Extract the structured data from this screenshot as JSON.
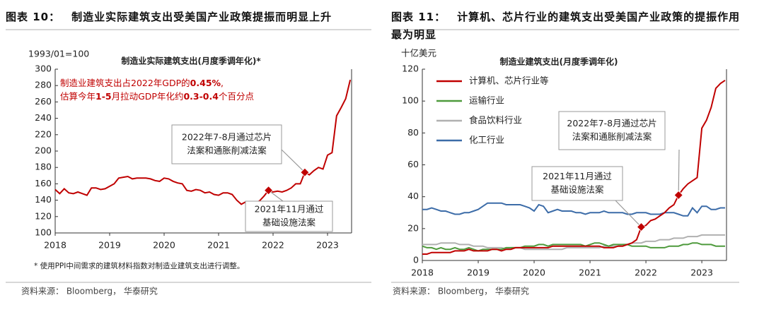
{
  "chart_data": [
    {
      "type": "line",
      "figure_label": "图表 10：",
      "title": "制造业实际建筑支出受美国产业政策提振而明显上升",
      "unit_label": "1993/01=100",
      "subtitle": "制造业实际建筑支出(月度季调年化)*",
      "categories": [
        "2018",
        null,
        null,
        null,
        null,
        null,
        null,
        null,
        null,
        null,
        null,
        null,
        "2019",
        null,
        null,
        null,
        null,
        null,
        null,
        null,
        null,
        null,
        null,
        null,
        "2020",
        null,
        null,
        null,
        null,
        null,
        null,
        null,
        null,
        null,
        null,
        null,
        "2021",
        null,
        null,
        null,
        null,
        null,
        null,
        null,
        null,
        null,
        null,
        null,
        "2022",
        null,
        null,
        null,
        null,
        null,
        null,
        null,
        null,
        null,
        null,
        null,
        "2023",
        null,
        null,
        null,
        null,
        null
      ],
      "series": [
        {
          "name": "制造业实际建筑支出",
          "color": "#c00000",
          "values": [
            153,
            148,
            154,
            149,
            148,
            150,
            148,
            146,
            155,
            155,
            153,
            154,
            157,
            160,
            167,
            168,
            169,
            166,
            167,
            167,
            167,
            166,
            164,
            163,
            167,
            166,
            163,
            161,
            160,
            152,
            151,
            153,
            152,
            149,
            150,
            147,
            146,
            149,
            149,
            147,
            140,
            135,
            138,
            138,
            137,
            139,
            145,
            152,
            150,
            151,
            150,
            152,
            155,
            160,
            160,
            174,
            171,
            176,
            180,
            178,
            195,
            198,
            243,
            253,
            264,
            287
          ]
        }
      ],
      "markers": {
        "color": "#c00000",
        "values": [
          null,
          null,
          null,
          null,
          null,
          null,
          null,
          null,
          null,
          null,
          null,
          null,
          null,
          null,
          null,
          null,
          null,
          null,
          null,
          null,
          null,
          null,
          null,
          null,
          null,
          null,
          null,
          null,
          null,
          null,
          null,
          null,
          null,
          null,
          null,
          null,
          null,
          null,
          null,
          null,
          null,
          null,
          null,
          null,
          null,
          null,
          null,
          152,
          null,
          null,
          null,
          null,
          null,
          null,
          null,
          174,
          null,
          null,
          null,
          null,
          null,
          null,
          null,
          null,
          null,
          null
        ]
      },
      "ylim": [
        100,
        300
      ],
      "yticks": [
        100,
        120,
        140,
        160,
        180,
        200,
        220,
        240,
        260,
        280,
        300
      ],
      "note": {
        "color": "#c00000",
        "lines": [
          [
            "制造业建筑支出占2022年GDP的",
            "0.45%",
            ","
          ],
          [
            "估算今年",
            "1-5",
            "月拉动GDP年化约",
            "0.3-0.4",
            "个百分点"
          ]
        ]
      },
      "annotations": [
        {
          "lines": [
            "2021年11月通过",
            "基础设施法案"
          ]
        },
        {
          "lines": [
            "2022年7-8月通过芯片",
            "法案和通胀削减法案"
          ]
        }
      ],
      "footnote": "* 使用PPI中间需求的建筑材料指数对制造业建筑支出进行调整。",
      "source": "资料来源： Bloomberg， 华泰研究"
    },
    {
      "type": "line",
      "figure_label": "图表 11：",
      "title": "计算机、芯片行业的建筑支出受美国产业政策的提振作用最为明显",
      "unit_label": "十亿美元",
      "subtitle": "制造业建筑支出(月度季调年化)",
      "legend": "upper left",
      "categories": [
        "2018",
        null,
        null,
        null,
        null,
        null,
        null,
        null,
        null,
        null,
        null,
        null,
        "2019",
        null,
        null,
        null,
        null,
        null,
        null,
        null,
        null,
        null,
        null,
        null,
        "2020",
        null,
        null,
        null,
        null,
        null,
        null,
        null,
        null,
        null,
        null,
        null,
        "2021",
        null,
        null,
        null,
        null,
        null,
        null,
        null,
        null,
        null,
        null,
        null,
        "2022",
        null,
        null,
        null,
        null,
        null,
        null,
        null,
        null,
        null,
        null,
        null,
        "2023",
        null,
        null,
        null,
        null,
        null
      ],
      "series": [
        {
          "name": "计算机、芯片行业等",
          "color": "#c00000",
          "values": [
            4,
            4,
            5,
            5,
            5,
            5,
            5,
            6,
            6,
            6,
            7,
            6,
            6,
            6,
            6,
            7,
            7,
            6,
            7,
            7,
            8,
            8,
            8,
            8,
            8,
            8,
            8,
            8,
            9,
            9,
            9,
            9,
            9,
            9,
            9,
            9,
            9,
            9,
            9,
            8,
            8,
            8,
            9,
            9,
            10,
            11,
            13,
            21,
            22,
            25,
            26,
            28,
            30,
            33,
            35,
            41,
            45,
            48,
            50,
            52,
            83,
            88,
            96,
            108,
            111,
            113
          ]
        },
        {
          "name": "运输行业",
          "color": "#4e9a3c",
          "values": [
            9,
            8,
            8,
            7,
            8,
            7,
            7,
            8,
            7,
            7,
            8,
            7,
            6,
            7,
            7,
            7,
            7,
            7,
            8,
            8,
            8,
            8,
            9,
            9,
            9,
            10,
            10,
            9,
            10,
            10,
            10,
            10,
            10,
            10,
            10,
            9,
            10,
            11,
            11,
            10,
            9,
            10,
            10,
            10,
            10,
            9,
            9,
            9,
            9,
            8,
            8,
            8,
            8,
            9,
            9,
            9,
            10,
            10,
            11,
            11,
            10,
            10,
            10,
            9,
            9,
            9
          ]
        },
        {
          "name": "食品饮料行业",
          "color": "#b0b0b0",
          "values": [
            10,
            10,
            10,
            10,
            11,
            11,
            11,
            11,
            10,
            10,
            10,
            9,
            9,
            9,
            8,
            8,
            8,
            8,
            7,
            8,
            8,
            8,
            7,
            7,
            7,
            7,
            7,
            7,
            7,
            7,
            7,
            8,
            8,
            8,
            8,
            8,
            8,
            8,
            8,
            9,
            9,
            9,
            9,
            10,
            10,
            11,
            11,
            11,
            12,
            12,
            12,
            13,
            13,
            13,
            14,
            14,
            14,
            15,
            15,
            15,
            16,
            16,
            16,
            16,
            16,
            16
          ]
        },
        {
          "name": "化工行业",
          "color": "#3c6ca8",
          "values": [
            32,
            32,
            33,
            32,
            31,
            31,
            30,
            29,
            29,
            30,
            30,
            31,
            32,
            34,
            36,
            36,
            36,
            36,
            35,
            35,
            35,
            35,
            34,
            33,
            31,
            35,
            34,
            30,
            31,
            32,
            31,
            31,
            31,
            30,
            30,
            29,
            30,
            30,
            30,
            31,
            30,
            30,
            30,
            30,
            29,
            29,
            30,
            30,
            30,
            29,
            29,
            29,
            30,
            30,
            30,
            29,
            28,
            28,
            33,
            30,
            34,
            34,
            32,
            32,
            33,
            33
          ]
        }
      ],
      "markers": {
        "color": "#c00000",
        "values": [
          null,
          null,
          null,
          null,
          null,
          null,
          null,
          null,
          null,
          null,
          null,
          null,
          null,
          null,
          null,
          null,
          null,
          null,
          null,
          null,
          null,
          null,
          null,
          null,
          null,
          null,
          null,
          null,
          null,
          null,
          null,
          null,
          null,
          null,
          null,
          null,
          null,
          null,
          null,
          null,
          null,
          null,
          null,
          null,
          null,
          null,
          null,
          21,
          null,
          null,
          null,
          null,
          null,
          null,
          null,
          41,
          null,
          null,
          null,
          null,
          null,
          null,
          null,
          null,
          null,
          null
        ]
      },
      "ylim": [
        0,
        120
      ],
      "yticks": [
        0,
        20,
        40,
        60,
        80,
        100,
        120
      ],
      "annotations": [
        {
          "lines": [
            "2021年11月通过",
            "基础设施法案"
          ]
        },
        {
          "lines": [
            "2022年7-8月通过芯片",
            "法案和通胀削减法案"
          ]
        }
      ],
      "source": "资料来源： Bloomberg， 华泰研究"
    }
  ]
}
